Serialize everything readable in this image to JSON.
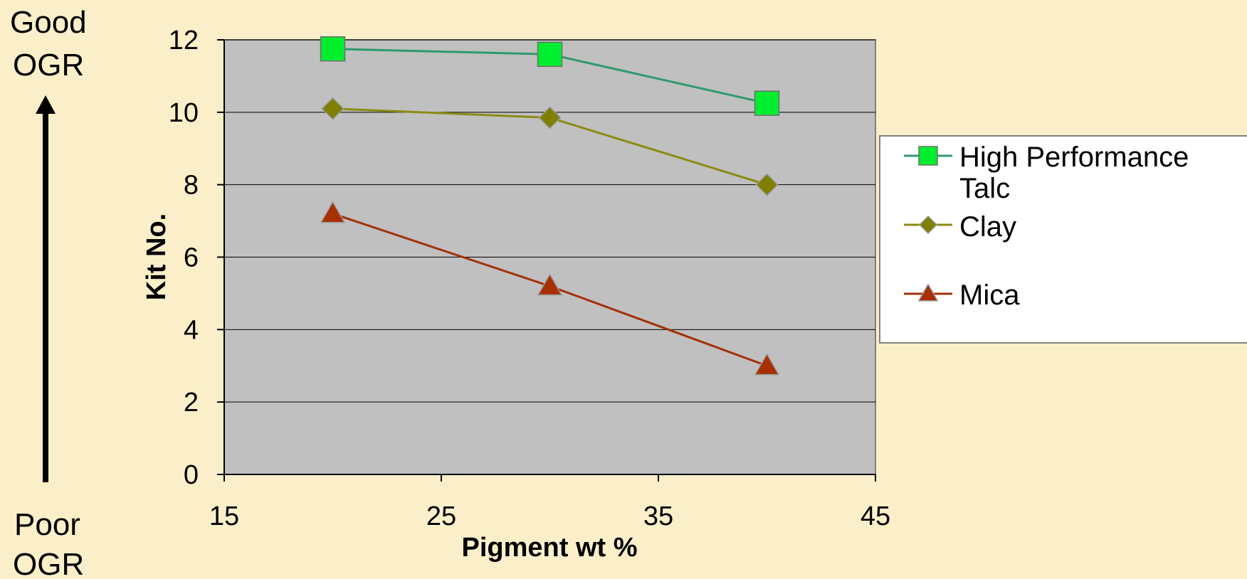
{
  "side_labels": {
    "top": [
      "Good",
      "OGR"
    ],
    "bottom": [
      "Poor",
      "OGR"
    ]
  },
  "chart_data": {
    "type": "line",
    "xlabel": "Pigment wt %",
    "ylabel": "Kit No.",
    "xlim": [
      15,
      45
    ],
    "ylim": [
      0,
      12
    ],
    "xticks": [
      15,
      25,
      35,
      45
    ],
    "yticks": [
      0,
      2,
      4,
      6,
      8,
      10,
      12
    ],
    "grid": "horizontal",
    "legend_position": "right",
    "plot_background": "#c0c0c0",
    "series": [
      {
        "name": [
          "High Performance",
          "Talc"
        ],
        "marker": "square",
        "line_color": "#2f9a6e",
        "marker_color": "#00ee2e",
        "x": [
          20,
          30,
          40
        ],
        "y": [
          11.75,
          11.6,
          10.25
        ]
      },
      {
        "name": [
          "Clay"
        ],
        "marker": "diamond",
        "line_color": "#8b8b12",
        "marker_color": "#7f7f00",
        "x": [
          20,
          30,
          40
        ],
        "y": [
          10.1,
          9.85,
          8.0
        ]
      },
      {
        "name": [
          "Mica"
        ],
        "marker": "triangle",
        "line_color": "#a33009",
        "marker_color": "#a83000",
        "x": [
          20,
          30,
          40
        ],
        "y": [
          7.2,
          5.2,
          3.0
        ]
      }
    ]
  }
}
